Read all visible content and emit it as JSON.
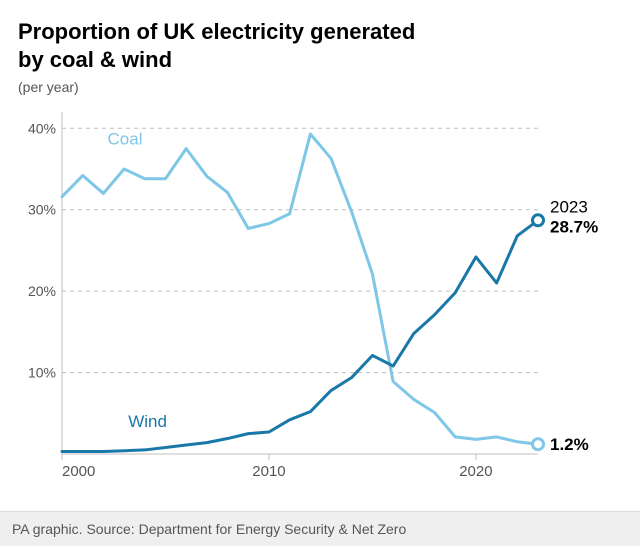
{
  "title_line1": "Proportion of UK electricity generated",
  "title_line2": "by coal & wind",
  "title_fontsize": 22,
  "subtitle": "(per year)",
  "subtitle_fontsize": 14,
  "footer": "PA graphic. Source: Department for Energy Security & Net Zero",
  "chart": {
    "type": "line",
    "background_color": "#ffffff",
    "grid_color": "#bfbfbf",
    "grid_dash": "4 4",
    "axis_color": "#bfbfbf",
    "ylim": [
      0,
      42
    ],
    "yticks": [
      10,
      20,
      30,
      40
    ],
    "ytick_labels": [
      "10%",
      "20%",
      "30%",
      "40%"
    ],
    "ytick_fontsize": 14,
    "ytick_color": "#555555",
    "xlim": [
      2000,
      2023
    ],
    "xticks": [
      2000,
      2010,
      2020
    ],
    "xtick_labels": [
      "2000",
      "2010",
      "2020"
    ],
    "xtick_fontsize": 15,
    "xtick_color": "#555555",
    "years": [
      2000,
      2001,
      2002,
      2003,
      2004,
      2005,
      2006,
      2007,
      2008,
      2009,
      2010,
      2011,
      2012,
      2013,
      2014,
      2015,
      2016,
      2017,
      2018,
      2019,
      2020,
      2021,
      2022,
      2023
    ],
    "series": {
      "coal": {
        "label": "Coal",
        "label_pos_year": 2002.2,
        "label_pos_value": 38,
        "color": "#7ec7e6",
        "line_width": 3,
        "end_marker": true,
        "end_marker_fill": "#ffffff",
        "end_marker_size": 5.5,
        "end_label_year": "",
        "end_label_value": "1.2%",
        "end_label_fontsize": 17,
        "values": [
          31.6,
          34.2,
          32.0,
          35.0,
          33.8,
          33.8,
          37.5,
          34.1,
          32.1,
          27.7,
          28.3,
          29.5,
          39.3,
          36.3,
          29.7,
          22.1,
          8.9,
          6.7,
          5.1,
          2.1,
          1.8,
          2.1,
          1.5,
          1.2
        ]
      },
      "wind": {
        "label": "Wind",
        "label_pos_year": 2003.2,
        "label_pos_value": 3.3,
        "color": "#1978a8",
        "line_width": 3,
        "end_marker": true,
        "end_marker_fill": "#ffffff",
        "end_marker_size": 5.5,
        "end_label_year": "2023",
        "end_label_value": "28.7%",
        "end_label_fontsize": 17,
        "values": [
          0.3,
          0.3,
          0.3,
          0.4,
          0.5,
          0.8,
          1.1,
          1.4,
          1.9,
          2.5,
          2.7,
          4.2,
          5.2,
          7.8,
          9.4,
          12.1,
          10.8,
          14.8,
          17.1,
          19.8,
          24.2,
          21.0,
          26.8,
          28.7
        ]
      }
    }
  }
}
